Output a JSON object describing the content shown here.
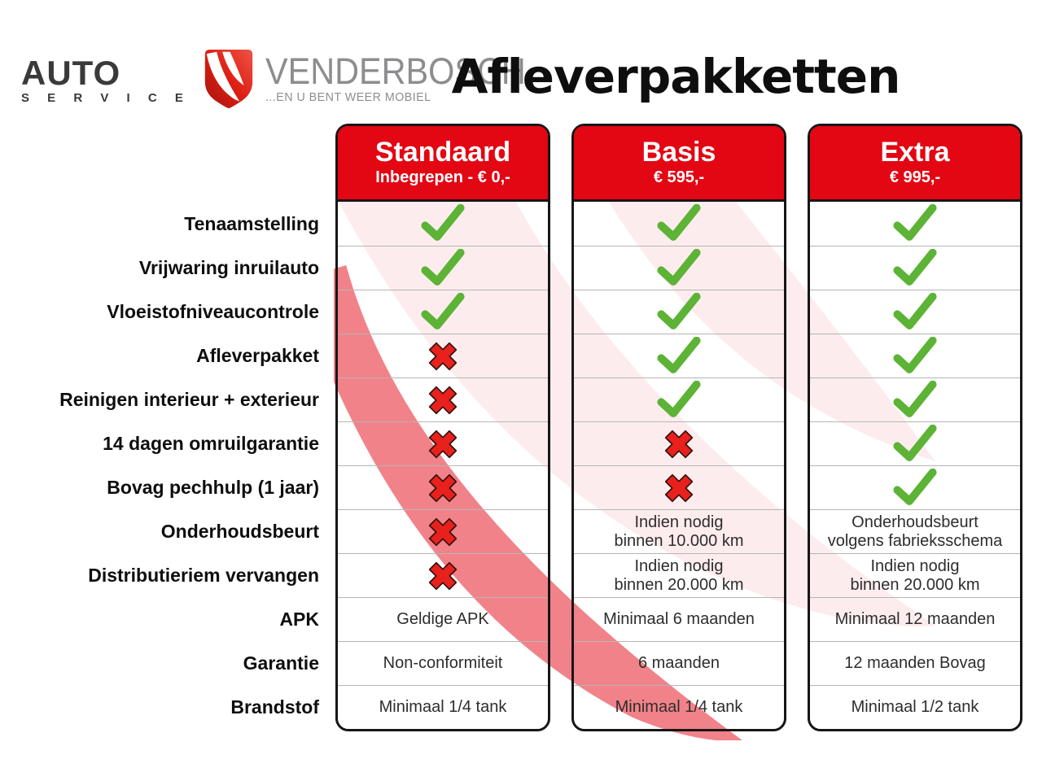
{
  "logo": {
    "auto": "AUTO",
    "service": "S E R V I C E",
    "brand": "VENDERBOSCH",
    "tagline": "...EN U BENT WEER MOBIEL"
  },
  "title": "Afleverpakketten",
  "colors": {
    "header_red": "#e30613",
    "check_green": "#5cb335",
    "cross_red": "#e8211d",
    "border_black": "#161616"
  },
  "table": {
    "packages": [
      {
        "name": "Standaard",
        "price": "Inbegrepen - € 0,-"
      },
      {
        "name": "Basis",
        "price": "€ 595,-"
      },
      {
        "name": "Extra",
        "price": "€ 995,-"
      }
    ],
    "rows": [
      {
        "label": "Tenaamstelling",
        "cells": [
          {
            "icon": "check"
          },
          {
            "icon": "check"
          },
          {
            "icon": "check"
          }
        ]
      },
      {
        "label": "Vrijwaring inruilauto",
        "cells": [
          {
            "icon": "check"
          },
          {
            "icon": "check"
          },
          {
            "icon": "check"
          }
        ]
      },
      {
        "label": "Vloeistofniveaucontrole",
        "cells": [
          {
            "icon": "check"
          },
          {
            "icon": "check"
          },
          {
            "icon": "check"
          }
        ]
      },
      {
        "label": "Afleverpakket",
        "cells": [
          {
            "icon": "cross"
          },
          {
            "icon": "check"
          },
          {
            "icon": "check"
          }
        ]
      },
      {
        "label": "Reinigen interieur + exterieur",
        "cells": [
          {
            "icon": "cross"
          },
          {
            "icon": "check"
          },
          {
            "icon": "check"
          }
        ]
      },
      {
        "label": "14 dagen omruilgarantie",
        "cells": [
          {
            "icon": "cross"
          },
          {
            "icon": "cross"
          },
          {
            "icon": "check"
          }
        ]
      },
      {
        "label": "Bovag pechhulp (1 jaar)",
        "cells": [
          {
            "icon": "cross"
          },
          {
            "icon": "cross"
          },
          {
            "icon": "check"
          }
        ]
      },
      {
        "label": "Onderhoudsbeurt",
        "cells": [
          {
            "icon": "cross"
          },
          {
            "lines": [
              "Indien nodig",
              "binnen 10.000 km"
            ]
          },
          {
            "lines": [
              "Onderhoudsbeurt",
              "volgens fabrieksschema"
            ]
          }
        ]
      },
      {
        "label": "Distributieriem vervangen",
        "cells": [
          {
            "icon": "cross"
          },
          {
            "lines": [
              "Indien nodig",
              "binnen 20.000 km"
            ]
          },
          {
            "lines": [
              "Indien nodig",
              "binnen 20.000 km"
            ]
          }
        ]
      },
      {
        "label": "APK",
        "cells": [
          {
            "lines": [
              "Geldige APK"
            ]
          },
          {
            "lines": [
              "Minimaal 6 maanden"
            ]
          },
          {
            "lines": [
              "Minimaal 12 maanden"
            ]
          }
        ]
      },
      {
        "label": "Garantie",
        "cells": [
          {
            "lines": [
              "Non-conformiteit"
            ]
          },
          {
            "lines": [
              "6 maanden"
            ]
          },
          {
            "lines": [
              "12 maanden Bovag"
            ]
          }
        ]
      },
      {
        "label": "Brandstof",
        "cells": [
          {
            "lines": [
              "Minimaal 1/4 tank"
            ]
          },
          {
            "lines": [
              "Minimaal 1/4 tank"
            ]
          },
          {
            "lines": [
              "Minimaal 1/2 tank"
            ]
          }
        ]
      }
    ]
  }
}
